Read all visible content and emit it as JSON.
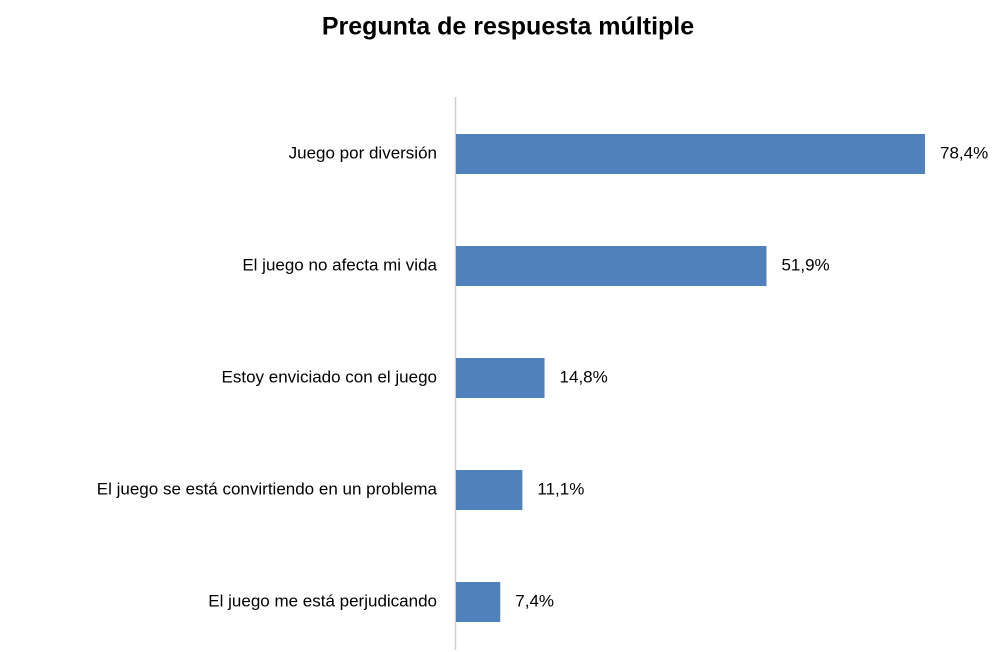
{
  "chart_data": {
    "type": "bar",
    "orientation": "horizontal",
    "title": "Pregunta de respuesta múltiple",
    "categories": [
      "Juego por diversión",
      "El juego no afecta mi vida",
      "Estoy enviciado con el juego",
      "El juego se está convirtiendo en un problema",
      "El juego me está perjudicando"
    ],
    "values": [
      78.4,
      51.9,
      14.8,
      11.1,
      7.4
    ],
    "value_labels": [
      "78,4%",
      "51,9%",
      "14,8%",
      "11,1%",
      "7,4%"
    ],
    "color": "#4f81bd"
  }
}
